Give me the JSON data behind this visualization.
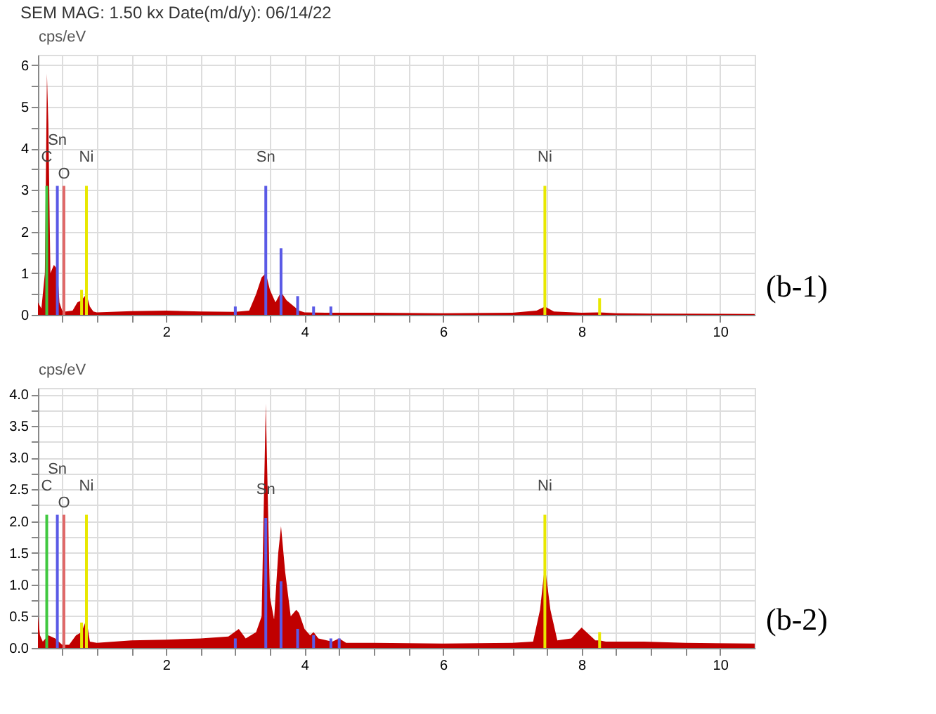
{
  "chart_data": [
    {
      "type": "area",
      "title": "SEM MAG: 1.50 kx      Date(m/d/y): 06/14/22",
      "ylabel": "cps/eV",
      "grid": true,
      "xlim": [
        0.15,
        10.5
      ],
      "ylim": [
        0,
        6.25
      ],
      "xticks": [
        {
          "value": 0.5,
          "label": null
        },
        {
          "value": 1,
          "label": null
        },
        {
          "value": 1.5,
          "label": null
        },
        2,
        {
          "value": 2.5,
          "label": null
        },
        {
          "value": 3,
          "label": null
        },
        {
          "value": 3.5,
          "label": null
        },
        4,
        {
          "value": 4.5,
          "label": null
        },
        {
          "value": 5,
          "label": null
        },
        {
          "value": 5.5,
          "label": null
        },
        6,
        {
          "value": 6.5,
          "label": null
        },
        {
          "value": 7,
          "label": null
        },
        {
          "value": 7.5,
          "label": null
        },
        8,
        {
          "value": 8.5,
          "label": null
        },
        {
          "value": 9,
          "label": null
        },
        {
          "value": 9.5,
          "label": null
        },
        10
      ],
      "yticks": [
        0,
        {
          "value": 0.5,
          "label": null
        },
        1,
        {
          "value": 1.5,
          "label": null
        },
        2,
        {
          "value": 2.5,
          "label": null
        },
        3,
        {
          "value": 3.5,
          "label": null
        },
        4,
        {
          "value": 4.5,
          "label": null
        },
        5,
        {
          "value": 5.5,
          "label": null
        },
        6
      ],
      "series": [
        {
          "color": "#c00000",
          "x": [
            0.15,
            0.2,
            0.25,
            0.28,
            0.3,
            0.33,
            0.38,
            0.43,
            0.46,
            0.5,
            0.55,
            0.65,
            0.72,
            0.78,
            0.85,
            0.9,
            0.95,
            1.0,
            1.5,
            2.0,
            2.5,
            3.0,
            3.2,
            3.3,
            3.38,
            3.44,
            3.5,
            3.58,
            3.66,
            3.74,
            3.85,
            3.92,
            4.0,
            4.3,
            5.0,
            6.0,
            7.0,
            7.35,
            7.47,
            7.6,
            8.0,
            8.26,
            8.5,
            9.0,
            10.5
          ],
          "values": [
            0.3,
            0.15,
            1.0,
            5.8,
            4.6,
            1.0,
            1.2,
            1.1,
            0.3,
            0.1,
            0.08,
            0.1,
            0.3,
            0.35,
            0.5,
            0.2,
            0.08,
            0.06,
            0.09,
            0.1,
            0.08,
            0.07,
            0.1,
            0.5,
            0.9,
            1.0,
            0.6,
            0.3,
            0.55,
            0.35,
            0.2,
            0.1,
            0.06,
            0.05,
            0.05,
            0.04,
            0.05,
            0.1,
            0.2,
            0.08,
            0.05,
            0.06,
            0.04,
            0.03,
            0.02
          ]
        },
        {
          "type": "bar",
          "color": "#40c840",
          "x": [
            0.277
          ],
          "values": [
            3.1
          ]
        },
        {
          "type": "bar",
          "color": "#5a5ae6",
          "x": [
            0.43,
            3.0,
            3.44,
            3.66,
            3.9,
            4.13,
            4.38
          ],
          "values": [
            3.1,
            0.2,
            3.1,
            1.6,
            0.45,
            0.2,
            0.2
          ]
        },
        {
          "type": "bar",
          "color": "#e06868",
          "x": [
            0.525
          ],
          "values": [
            3.1
          ]
        },
        {
          "type": "bar",
          "color": "#e8e800",
          "x": [
            0.78,
            0.85,
            7.47,
            8.26
          ],
          "values": [
            0.6,
            3.1,
            3.1,
            0.4
          ]
        }
      ],
      "annotations": [
        {
          "text": "C",
          "x": 0.277,
          "y": 3.1
        },
        {
          "text": "Sn",
          "x": 0.43,
          "y": 3.1
        },
        {
          "text": "O",
          "x": 0.525,
          "y": 3.1
        },
        {
          "text": "Ni",
          "x": 0.85,
          "y": 3.1
        },
        {
          "text": "Sn",
          "x": 3.44,
          "y": 3.1
        },
        {
          "text": "Ni",
          "x": 7.47,
          "y": 3.1
        },
        "(b-1)"
      ]
    },
    {
      "type": "area",
      "ylabel": "cps/eV",
      "grid": true,
      "xlim": [
        0.15,
        10.5
      ],
      "ylim": [
        0,
        4.1
      ],
      "xticks": [
        {
          "value": 0.5,
          "label": null
        },
        {
          "value": 1,
          "label": null
        },
        {
          "value": 1.5,
          "label": null
        },
        2,
        {
          "value": 2.5,
          "label": null
        },
        {
          "value": 3,
          "label": null
        },
        {
          "value": 3.5,
          "label": null
        },
        4,
        {
          "value": 4.5,
          "label": null
        },
        {
          "value": 5,
          "label": null
        },
        {
          "value": 5.5,
          "label": null
        },
        6,
        {
          "value": 6.5,
          "label": null
        },
        {
          "value": 7,
          "label": null
        },
        {
          "value": 7.5,
          "label": null
        },
        8,
        {
          "value": 8.5,
          "label": null
        },
        {
          "value": 9,
          "label": null
        },
        {
          "value": 9.5,
          "label": null
        },
        10
      ],
      "yticks": [
        {
          "value": 0,
          "label": "0.0"
        },
        {
          "value": 0.25,
          "label": null
        },
        {
          "value": 0.5,
          "label": "0.5"
        },
        {
          "value": 0.75,
          "label": null
        },
        {
          "value": 1,
          "label": "1.0"
        },
        {
          "value": 1.25,
          "label": null
        },
        {
          "value": 1.5,
          "label": "1.5"
        },
        {
          "value": 1.75,
          "label": null
        },
        {
          "value": 2,
          "label": "2.0"
        },
        {
          "value": 2.25,
          "label": null
        },
        {
          "value": 2.5,
          "label": "2.5"
        },
        {
          "value": 2.75,
          "label": null
        },
        {
          "value": 3,
          "label": "3.0"
        },
        {
          "value": 3.25,
          "label": null
        },
        {
          "value": 3.5,
          "label": "3.5"
        },
        {
          "value": 3.75,
          "label": null
        },
        {
          "value": 4,
          "label": "4.0"
        }
      ],
      "series": [
        {
          "color": "#c00000",
          "x": [
            0.15,
            0.18,
            0.22,
            0.3,
            0.4,
            0.5,
            0.6,
            0.7,
            0.78,
            0.85,
            0.9,
            1.0,
            1.5,
            2.0,
            2.5,
            2.9,
            3.05,
            3.15,
            3.3,
            3.38,
            3.44,
            3.5,
            3.56,
            3.62,
            3.66,
            3.72,
            3.8,
            3.88,
            3.92,
            4.0,
            4.08,
            4.13,
            4.2,
            4.4,
            4.5,
            4.6,
            5.0,
            6.0,
            7.0,
            7.3,
            7.4,
            7.47,
            7.55,
            7.65,
            7.85,
            8.0,
            8.12,
            8.2,
            8.26,
            8.35,
            8.9,
            9.5,
            10.5
          ],
          "values": [
            0.5,
            0.2,
            0.1,
            0.2,
            0.15,
            0.05,
            0.05,
            0.2,
            0.25,
            0.45,
            0.1,
            0.08,
            0.12,
            0.13,
            0.15,
            0.18,
            0.3,
            0.15,
            0.25,
            0.5,
            3.85,
            0.8,
            0.45,
            1.5,
            1.92,
            1.2,
            0.5,
            0.6,
            0.55,
            0.3,
            0.2,
            0.25,
            0.15,
            0.1,
            0.15,
            0.08,
            0.08,
            0.07,
            0.08,
            0.1,
            0.6,
            1.3,
            0.6,
            0.12,
            0.15,
            0.32,
            0.2,
            0.12,
            0.12,
            0.1,
            0.1,
            0.08,
            0.07
          ]
        },
        {
          "type": "bar",
          "color": "#40c840",
          "x": [
            0.277
          ],
          "values": [
            2.1
          ]
        },
        {
          "type": "bar",
          "color": "#5a5ae6",
          "x": [
            0.43,
            3.0,
            3.44,
            3.66,
            3.9,
            4.13,
            4.38,
            4.5
          ],
          "values": [
            2.1,
            0.15,
            2.05,
            1.05,
            0.3,
            0.2,
            0.15,
            0.15
          ]
        },
        {
          "type": "bar",
          "color": "#e06868",
          "x": [
            0.525
          ],
          "values": [
            2.1
          ]
        },
        {
          "type": "bar",
          "color": "#e8e800",
          "x": [
            0.78,
            0.85,
            7.47,
            8.26
          ],
          "values": [
            0.4,
            2.1,
            2.1,
            0.25
          ]
        }
      ],
      "annotations": [
        {
          "text": "C",
          "x": 0.277,
          "y": 2.1
        },
        {
          "text": "Sn",
          "x": 0.43,
          "y": 2.1
        },
        {
          "text": "O",
          "x": 0.525,
          "y": 2.1
        },
        {
          "text": "Ni",
          "x": 0.85,
          "y": 2.1
        },
        {
          "text": "Sn",
          "x": 3.44,
          "y": 2.05
        },
        {
          "text": "Ni",
          "x": 7.47,
          "y": 2.1
        },
        "(b-2)"
      ]
    }
  ]
}
